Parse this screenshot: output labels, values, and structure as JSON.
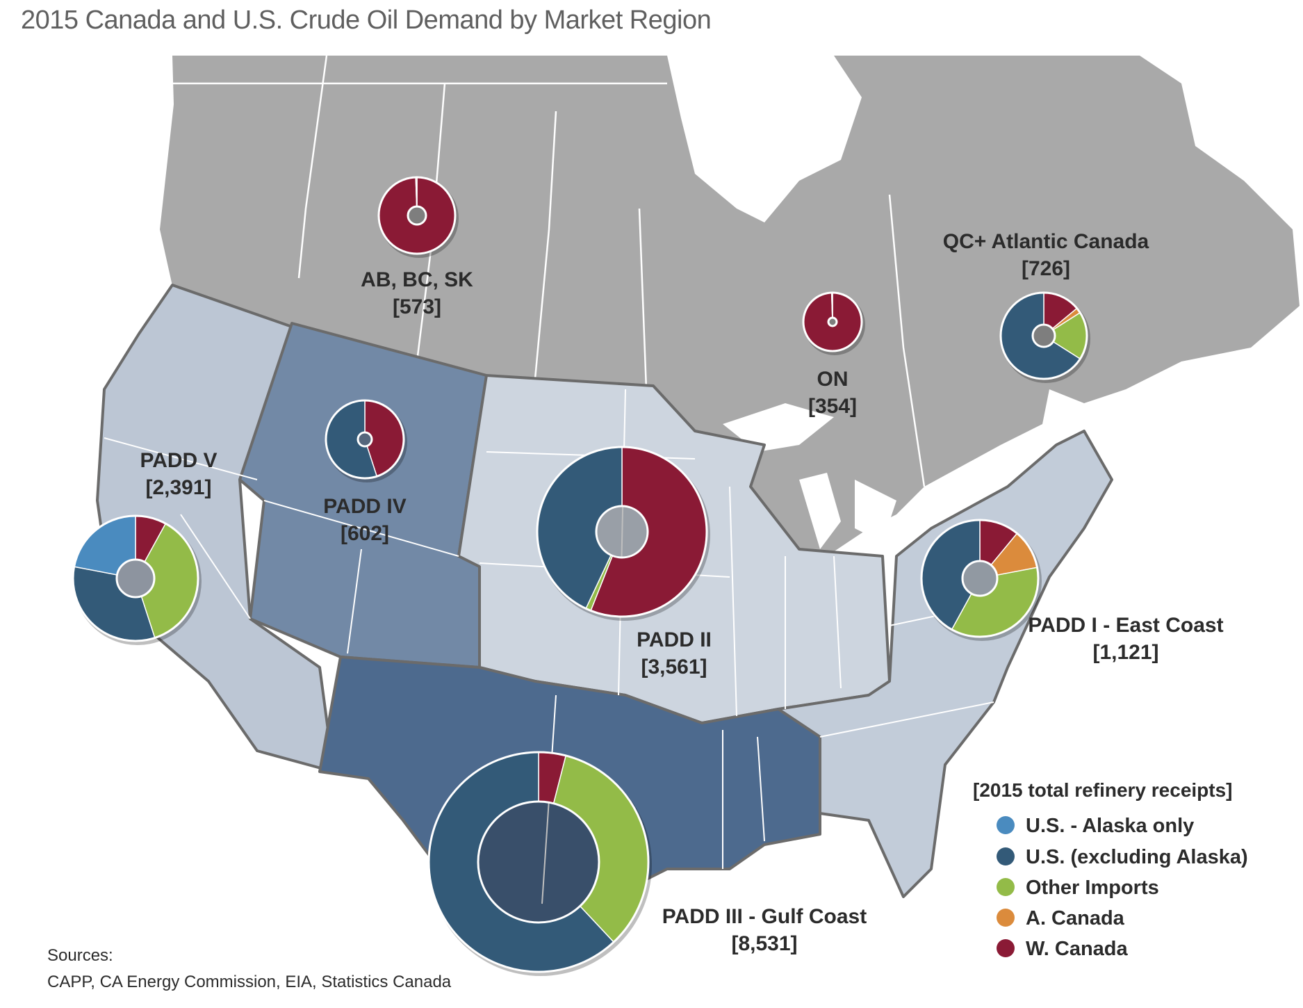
{
  "title": "2015 Canada and U.S. Crude Oil Demand by Market Region",
  "colors": {
    "us_alaska": "#4a8bbf",
    "us_excl_alaska": "#335a78",
    "other_imports": "#93bb48",
    "a_canada": "#db8b3c",
    "w_canada": "#8a1a35",
    "canada_land": "#a9a9a9",
    "padd1": "#c2ccd9",
    "padd2": "#cdd5df",
    "padd3": "#4d6a8e",
    "padd4": "#7289a6",
    "padd5": "#bcc6d4",
    "border": "#6b6b6b"
  },
  "regions": [
    {
      "name": "AB, BC, SK",
      "value": "[573]"
    },
    {
      "name": "ON",
      "value": "[354]"
    },
    {
      "name": "QC+ Atlantic Canada",
      "value": "[726]"
    },
    {
      "name": "PADD V",
      "value": "[2,391]"
    },
    {
      "name": "PADD IV",
      "value": "[602]"
    },
    {
      "name": "PADD II",
      "value": "[3,561]"
    },
    {
      "name": "PADD I - East Coast",
      "value": "[1,121]"
    },
    {
      "name": "PADD III - Gulf Coast",
      "value": "[8,531]"
    }
  ],
  "legend": {
    "title": "[2015 total refinery receipts]",
    "items": [
      {
        "label": "U.S. - Alaska only",
        "color_key": "us_alaska"
      },
      {
        "label": "U.S. (excluding Alaska)",
        "color_key": "us_excl_alaska"
      },
      {
        "label": "Other Imports",
        "color_key": "other_imports"
      },
      {
        "label": "A. Canada",
        "color_key": "a_canada"
      },
      {
        "label": "W. Canada",
        "color_key": "w_canada"
      }
    ]
  },
  "sources": {
    "heading": "Sources:",
    "text": "CAPP, CA Energy Commission, EIA, Statistics Canada"
  },
  "chart_data": {
    "type": "pie",
    "series_order": [
      "U.S. - Alaska only",
      "U.S. (excluding Alaska)",
      "Other Imports",
      "A. Canada",
      "W. Canada"
    ],
    "charts": [
      {
        "region": "AB, BC, SK",
        "total": 573,
        "shares": {
          "W. Canada": 99.5,
          "Other Imports": 0.5
        }
      },
      {
        "region": "ON",
        "total": 354,
        "shares": {
          "W. Canada": 99.5,
          "Other Imports": 0.5
        }
      },
      {
        "region": "QC+ Atlantic Canada",
        "total": 726,
        "shares": {
          "W. Canada": 14,
          "A. Canada": 2,
          "Other Imports": 18,
          "U.S. (excluding Alaska)": 66
        }
      },
      {
        "region": "PADD V",
        "total": 2391,
        "shares": {
          "W. Canada": 8,
          "Other Imports": 37,
          "U.S. (excluding Alaska)": 33,
          "U.S. - Alaska only": 22
        }
      },
      {
        "region": "PADD IV",
        "total": 602,
        "shares": {
          "W. Canada": 45,
          "U.S. (excluding Alaska)": 55
        }
      },
      {
        "region": "PADD II",
        "total": 3561,
        "shares": {
          "W. Canada": 56,
          "Other Imports": 1,
          "U.S. (excluding Alaska)": 43
        }
      },
      {
        "region": "PADD I - East Coast",
        "total": 1121,
        "shares": {
          "W. Canada": 11,
          "A. Canada": 11,
          "Other Imports": 36,
          "U.S. (excluding Alaska)": 42
        }
      },
      {
        "region": "PADD III - Gulf Coast",
        "total": 8531,
        "shares": {
          "W. Canada": 4,
          "Other Imports": 34,
          "U.S. (excluding Alaska)": 62
        }
      }
    ]
  }
}
